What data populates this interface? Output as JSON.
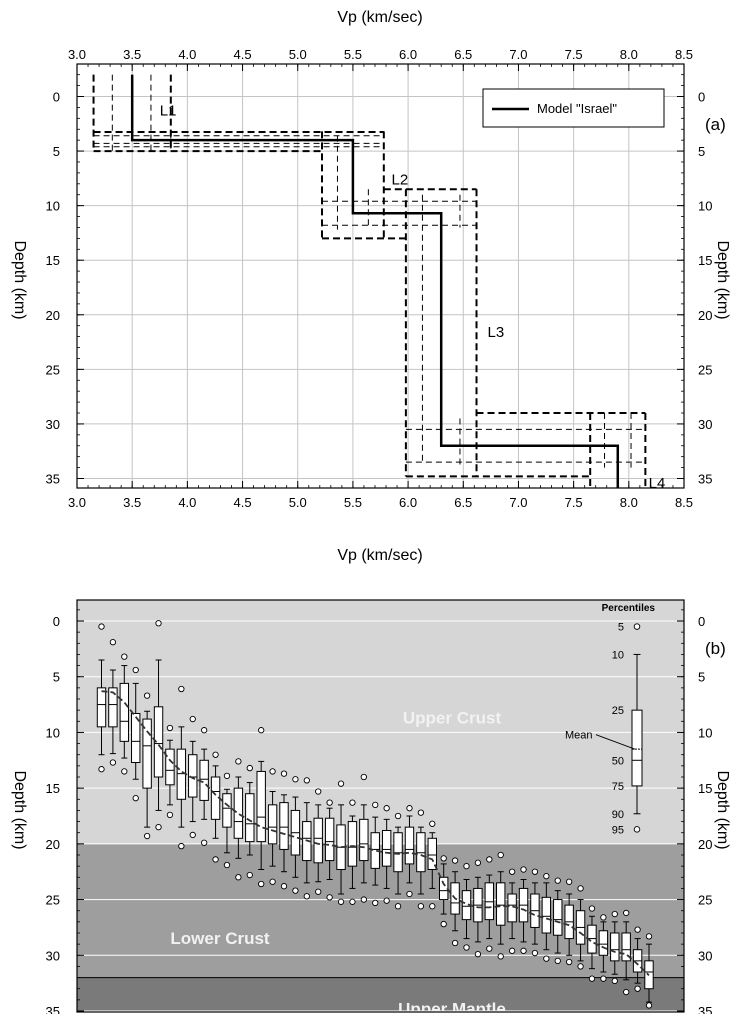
{
  "chart_data": [
    {
      "id": "a",
      "panel_label": "(a)",
      "type": "line",
      "xlabel": "Vp (km/sec)",
      "ylabel": "Depth (km)",
      "xlim": [
        3.0,
        8.5
      ],
      "ylim": [
        0,
        37
      ],
      "y_inverted": true,
      "x_ticks": [
        "3.0",
        "3.5",
        "4.0",
        "4.5",
        "5.0",
        "5.5",
        "6.0",
        "6.5",
        "7.0",
        "7.5",
        "8.0",
        "8.5"
      ],
      "y_ticks": [
        "0",
        "5",
        "10",
        "15",
        "20",
        "25",
        "30",
        "35"
      ],
      "grid": true,
      "legend_position": "top-right",
      "series": [
        {
          "name": "Model \"Israel\"",
          "style": "solid",
          "points": [
            [
              3.5,
              -2
            ],
            [
              3.5,
              4
            ],
            [
              5.5,
              4
            ],
            [
              5.5,
              10.7
            ],
            [
              6.3,
              10.7
            ],
            [
              6.3,
              32
            ],
            [
              7.9,
              32
            ],
            [
              7.9,
              37.5
            ]
          ]
        }
      ],
      "bounds": [
        {
          "vp": [
            3.15,
            3.85
          ],
          "depth": [
            -2,
            5.0
          ]
        },
        {
          "vp": [
            5.22,
            5.78
          ],
          "depth": [
            3.2,
            13.0
          ]
        },
        {
          "vp": [
            5.98,
            6.62
          ],
          "depth": [
            8.5,
            34.8
          ]
        },
        {
          "vp": [
            7.65,
            8.15
          ],
          "depth": [
            29.0,
            37.5
          ]
        }
      ],
      "inner_vlines": [
        {
          "vp": 3.32,
          "depth": [
            -2,
            5
          ]
        },
        {
          "vp": 3.67,
          "depth": [
            -2,
            5
          ]
        },
        {
          "vp": 3.85,
          "depth": [
            3.3,
            5
          ]
        },
        {
          "vp": 5.36,
          "depth": [
            3.6,
            12.2
          ]
        },
        {
          "vp": 5.64,
          "depth": [
            8.5,
            12.0
          ]
        },
        {
          "vp": 6.13,
          "depth": [
            9.0,
            33.5
          ]
        },
        {
          "vp": 6.47,
          "depth": [
            9.0,
            12.0
          ]
        },
        {
          "vp": 6.47,
          "depth": [
            29.5,
            34.0
          ]
        },
        {
          "vp": 7.78,
          "depth": [
            29.0,
            34.0
          ]
        },
        {
          "vp": 8.02,
          "depth": [
            29.0,
            34.0
          ]
        }
      ],
      "hlines": [
        {
          "depth": 3.25,
          "vp": [
            3.15,
            5.78
          ],
          "style": "dash"
        },
        {
          "depth": 3.6,
          "vp": [
            3.15,
            5.78
          ],
          "style": "thin"
        },
        {
          "depth": 4.3,
          "vp": [
            3.15,
            5.78
          ],
          "style": "thin"
        },
        {
          "depth": 4.6,
          "vp": [
            3.15,
            5.78
          ],
          "style": "thin"
        },
        {
          "depth": 5.0,
          "vp": [
            3.15,
            5.22
          ],
          "style": "dash"
        },
        {
          "depth": 8.5,
          "vp": [
            5.78,
            6.62
          ],
          "style": "dash"
        },
        {
          "depth": 9.6,
          "vp": [
            5.22,
            6.62
          ],
          "style": "thin"
        },
        {
          "depth": 11.8,
          "vp": [
            5.22,
            6.62
          ],
          "style": "thin"
        },
        {
          "depth": 13.0,
          "vp": [
            5.22,
            5.98
          ],
          "style": "dash"
        },
        {
          "depth": 29.0,
          "vp": [
            6.62,
            8.15
          ],
          "style": "dash"
        },
        {
          "depth": 30.5,
          "vp": [
            5.98,
            8.15
          ],
          "style": "thin"
        },
        {
          "depth": 33.5,
          "vp": [
            5.98,
            8.15
          ],
          "style": "thin"
        },
        {
          "depth": 34.8,
          "vp": [
            5.98,
            7.65
          ],
          "style": "dash"
        }
      ],
      "annotations": [
        {
          "text": "L1",
          "x": 3.75,
          "y": 1.3
        },
        {
          "text": "L2",
          "x": 5.85,
          "y": 7.6
        },
        {
          "text": "L3",
          "x": 6.72,
          "y": 21.6
        },
        {
          "text": "L4",
          "x": 8.18,
          "y": 35.4
        }
      ]
    },
    {
      "id": "b",
      "panel_label": "(b)",
      "type": "box",
      "ylabel": "Depth (km)",
      "ylim": [
        -2.5,
        37.5
      ],
      "y_inverted": true,
      "y_ticks": [
        "0",
        "5",
        "10",
        "15",
        "20",
        "25",
        "30",
        "35"
      ],
      "zones": [
        {
          "label": "Upper Crust",
          "from": -2.5,
          "to": 20,
          "color": "#d6d6d6"
        },
        {
          "label": "Lower Crust",
          "from": 20,
          "to": 32,
          "color": "#9e9e9e"
        },
        {
          "label": "Upper Mantle",
          "from": 32,
          "to": 37.5,
          "color": "#7a7a7a"
        }
      ],
      "boxes": [
        {
          "p5": 0.5,
          "p10": 3.5,
          "p25": 6.0,
          "mean": 6.3,
          "p50": 7.5,
          "p75": 9.5,
          "p90": 12.0,
          "p95": 13.3
        },
        {
          "p5": 1.9,
          "p10": 4.4,
          "p25": 6.0,
          "mean": 6.4,
          "p50": 7.5,
          "p75": 9.5,
          "p90": 11.9,
          "p95": 12.7
        },
        {
          "p5": 3.2,
          "p10": 4.0,
          "p25": 5.6,
          "mean": 7.3,
          "p50": 9.0,
          "p75": 10.8,
          "p90": 12.3,
          "p95": 13.5
        },
        {
          "p5": 4.4,
          "p10": 5.6,
          "p25": 8.3,
          "mean": 8.6,
          "p50": 10.8,
          "p75": 12.7,
          "p90": 14.2,
          "p95": 15.9
        },
        {
          "p5": 6.7,
          "p10": 8.1,
          "p25": 8.8,
          "mean": 9.9,
          "p50": 11.2,
          "p75": 15.0,
          "p90": 18.5,
          "p95": 19.3
        },
        {
          "p5": 0.2,
          "p10": 3.5,
          "p25": 7.7,
          "mean": 11.1,
          "p50": 11.0,
          "p75": 14.0,
          "p90": 17.0,
          "p95": 18.5
        },
        {
          "p5": 9.6,
          "p10": 10.7,
          "p25": 11.5,
          "mean": 12.5,
          "p50": 13.4,
          "p75": 14.7,
          "p90": 16.5,
          "p95": 17.4
        },
        {
          "p5": 6.1,
          "p10": 9.5,
          "p25": 11.5,
          "mean": 13.5,
          "p50": 13.7,
          "p75": 16.0,
          "p90": 18.5,
          "p95": 20.2
        },
        {
          "p5": 8.8,
          "p10": 10.8,
          "p25": 12.0,
          "mean": 14.1,
          "p50": 14.0,
          "p75": 15.8,
          "p90": 18.0,
          "p95": 19.2
        },
        {
          "p5": 9.8,
          "p10": 11.5,
          "p25": 12.5,
          "mean": 14.5,
          "p50": 14.2,
          "p75": 16.1,
          "p90": 17.8,
          "p95": 19.9
        },
        {
          "p5": 12.0,
          "p10": 13.0,
          "p25": 14.0,
          "mean": 15.6,
          "p50": 15.3,
          "p75": 17.8,
          "p90": 19.5,
          "p95": 21.4
        },
        {
          "p5": 13.9,
          "p10": 15.1,
          "p25": 15.5,
          "mean": 16.5,
          "p50": 16.8,
          "p75": 18.5,
          "p90": 20.8,
          "p95": 21.9
        },
        {
          "p5": 12.6,
          "p10": 14.0,
          "p25": 15.0,
          "mean": 17.3,
          "p50": 18.0,
          "p75": 19.5,
          "p90": 21.3,
          "p95": 23.0
        },
        {
          "p5": 13.2,
          "p10": 14.5,
          "p25": 15.5,
          "mean": 17.9,
          "p50": 18.2,
          "p75": 19.8,
          "p90": 21.0,
          "p95": 22.8
        },
        {
          "p5": 9.8,
          "p10": 12.6,
          "p25": 13.5,
          "mean": 18.5,
          "p50": 17.6,
          "p75": 19.8,
          "p90": 22.3,
          "p95": 23.6
        },
        {
          "p5": 13.5,
          "p10": 15.3,
          "p25": 16.5,
          "mean": 18.8,
          "p50": 18.5,
          "p75": 20.0,
          "p90": 22.0,
          "p95": 23.4
        },
        {
          "p5": 13.7,
          "p10": 15.6,
          "p25": 16.3,
          "mean": 19.1,
          "p50": 18.5,
          "p75": 20.5,
          "p90": 22.5,
          "p95": 23.8
        },
        {
          "p5": 14.2,
          "p10": 15.8,
          "p25": 17.0,
          "mean": 19.4,
          "p50": 19.0,
          "p75": 21.0,
          "p90": 23.0,
          "p95": 24.2
        },
        {
          "p5": 14.3,
          "p10": 16.3,
          "p25": 18.0,
          "mean": 19.7,
          "p50": 19.5,
          "p75": 21.5,
          "p90": 23.5,
          "p95": 24.7
        },
        {
          "p5": 15.3,
          "p10": 16.5,
          "p25": 17.7,
          "mean": 20.0,
          "p50": 19.5,
          "p75": 21.7,
          "p90": 23.4,
          "p95": 24.3
        },
        {
          "p5": 16.3,
          "p10": 16.8,
          "p25": 17.7,
          "mean": 20.1,
          "p50": 19.8,
          "p75": 21.5,
          "p90": 23.2,
          "p95": 24.8
        },
        {
          "p5": 14.6,
          "p10": 16.5,
          "p25": 18.3,
          "mean": 20.3,
          "p50": 20.3,
          "p75": 22.3,
          "p90": 24.5,
          "p95": 25.2
        },
        {
          "p5": 16.3,
          "p10": 17.5,
          "p25": 18.0,
          "mean": 20.2,
          "p50": 20.3,
          "p75": 22.0,
          "p90": 24.0,
          "p95": 25.2
        },
        {
          "p5": 14.0,
          "p10": 16.5,
          "p25": 17.8,
          "mean": 20.3,
          "p50": 20.0,
          "p75": 21.5,
          "p90": 23.5,
          "p95": 25.0
        },
        {
          "p5": 16.5,
          "p10": 17.6,
          "p25": 19.0,
          "mean": 20.6,
          "p50": 20.5,
          "p75": 22.2,
          "p90": 23.7,
          "p95": 25.3
        },
        {
          "p5": 16.8,
          "p10": 17.8,
          "p25": 18.8,
          "mean": 20.8,
          "p50": 20.5,
          "p75": 22.0,
          "p90": 24.0,
          "p95": 25.1
        },
        {
          "p5": 17.5,
          "p10": 18.5,
          "p25": 19.0,
          "mean": 20.9,
          "p50": 20.8,
          "p75": 22.5,
          "p90": 24.5,
          "p95": 25.6
        },
        {
          "p5": 16.8,
          "p10": 17.5,
          "p25": 18.5,
          "mean": 20.8,
          "p50": 20.5,
          "p75": 21.8,
          "p90": 23.5,
          "p95": 24.5
        },
        {
          "p5": 17.2,
          "p10": 18.5,
          "p25": 19.0,
          "mean": 21.0,
          "p50": 20.8,
          "p75": 22.5,
          "p90": 24.5,
          "p95": 25.6
        },
        {
          "p5": 18.2,
          "p10": 19.0,
          "p25": 19.5,
          "mean": 21.4,
          "p50": 21.0,
          "p75": 22.3,
          "p90": 24.0,
          "p95": 25.6
        },
        {
          "p5": 21.3,
          "p10": 21.8,
          "p25": 23.0,
          "mean": 23.6,
          "p50": 24.2,
          "p75": 25.0,
          "p90": 26.3,
          "p95": 27.2
        },
        {
          "p5": 21.5,
          "p10": 22.5,
          "p25": 23.5,
          "mean": 24.9,
          "p50": 25.3,
          "p75": 26.3,
          "p90": 27.8,
          "p95": 28.9
        },
        {
          "p5": 22.0,
          "p10": 23.2,
          "p25": 24.2,
          "mean": 25.4,
          "p50": 25.6,
          "p75": 26.8,
          "p90": 28.5,
          "p95": 29.3
        },
        {
          "p5": 21.7,
          "p10": 23.0,
          "p25": 24.0,
          "mean": 25.7,
          "p50": 25.5,
          "p75": 27.0,
          "p90": 28.8,
          "p95": 29.9
        },
        {
          "p5": 21.4,
          "p10": 22.8,
          "p25": 23.5,
          "mean": 25.7,
          "p50": 25.2,
          "p75": 26.8,
          "p90": 28.5,
          "p95": 29.4
        },
        {
          "p5": 21.0,
          "p10": 22.5,
          "p25": 23.5,
          "mean": 25.6,
          "p50": 25.5,
          "p75": 27.3,
          "p90": 29.0,
          "p95": 30.1
        },
        {
          "p5": 22.5,
          "p10": 23.5,
          "p25": 24.5,
          "mean": 25.6,
          "p50": 25.5,
          "p75": 27.0,
          "p90": 28.5,
          "p95": 29.6
        },
        {
          "p5": 22.3,
          "p10": 23.2,
          "p25": 24.0,
          "mean": 25.9,
          "p50": 25.5,
          "p75": 27.0,
          "p90": 28.8,
          "p95": 29.6
        },
        {
          "p5": 22.5,
          "p10": 23.5,
          "p25": 24.5,
          "mean": 26.4,
          "p50": 26.0,
          "p75": 27.5,
          "p90": 29.0,
          "p95": 29.8
        },
        {
          "p5": 22.9,
          "p10": 23.5,
          "p25": 24.8,
          "mean": 26.7,
          "p50": 26.5,
          "p75": 28.0,
          "p90": 29.5,
          "p95": 30.3
        },
        {
          "p5": 23.3,
          "p10": 24.2,
          "p25": 25.0,
          "mean": 27.0,
          "p50": 26.8,
          "p75": 28.2,
          "p90": 29.8,
          "p95": 30.5
        },
        {
          "p5": 23.4,
          "p10": 24.5,
          "p25": 25.5,
          "mean": 27.3,
          "p50": 27.0,
          "p75": 28.5,
          "p90": 30.0,
          "p95": 30.6
        },
        {
          "p5": 24.0,
          "p10": 25.0,
          "p25": 26.0,
          "mean": 28.0,
          "p50": 27.5,
          "p75": 29.0,
          "p90": 30.5,
          "p95": 31.0
        },
        {
          "p5": 25.8,
          "p10": 26.5,
          "p25": 27.3,
          "mean": 28.8,
          "p50": 28.5,
          "p75": 29.8,
          "p90": 31.2,
          "p95": 32.1
        },
        {
          "p5": 26.6,
          "p10": 27.0,
          "p25": 27.8,
          "mean": 29.3,
          "p50": 29.0,
          "p75": 30.0,
          "p90": 31.5,
          "p95": 32.1
        },
        {
          "p5": 26.3,
          "p10": 27.0,
          "p25": 28.0,
          "mean": 29.7,
          "p50": 29.5,
          "p75": 30.5,
          "p90": 31.7,
          "p95": 32.3
        },
        {
          "p5": 26.2,
          "p10": 27.0,
          "p25": 28.0,
          "mean": 29.9,
          "p50": 29.5,
          "p75": 30.5,
          "p90": 32.2,
          "p95": 33.3
        },
        {
          "p5": 27.7,
          "p10": 28.5,
          "p25": 29.5,
          "mean": 30.8,
          "p50": 30.5,
          "p75": 31.5,
          "p90": 32.5,
          "p95": 33.0
        },
        {
          "p5": 28.3,
          "p10": 29.0,
          "p25": 30.5,
          "mean": 31.8,
          "p50": 31.5,
          "p75": 33.0,
          "p90": 34.2,
          "p95": 34.5
        }
      ],
      "percentile_legend": {
        "title": "Percentiles",
        "labels": [
          "5",
          "10",
          "25",
          "50",
          "75",
          "90",
          "95"
        ],
        "mean_label": "Mean",
        "p5": 0.5,
        "p10": 3.0,
        "p25": 8.0,
        "mean": 11.5,
        "p50": 12.5,
        "p75": 14.8,
        "p90": 17.3,
        "p95": 18.7
      }
    }
  ],
  "legend": {
    "label": "Model \"Israel\""
  }
}
